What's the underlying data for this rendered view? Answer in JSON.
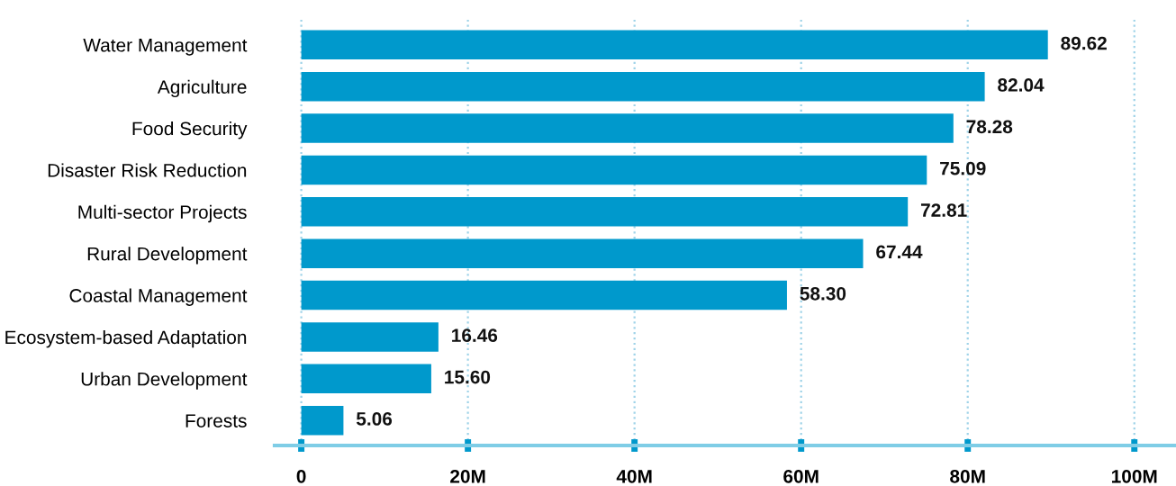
{
  "chart_data": {
    "type": "bar",
    "orientation": "horizontal",
    "categories": [
      "Water Management",
      "Agriculture",
      "Food Security",
      "Disaster Risk Reduction",
      "Multi-sector Projects",
      "Rural Development",
      "Coastal Management",
      "Ecosystem-based Adaptation",
      "Urban Development",
      "Forests"
    ],
    "values": [
      89.62,
      82.04,
      78.28,
      75.09,
      72.81,
      67.44,
      58.3,
      16.46,
      15.6,
      5.06
    ],
    "value_labels": [
      "89.62",
      "82.04",
      "78.28",
      "75.09",
      "72.81",
      "67.44",
      "58.30",
      "16.46",
      "15.60",
      "5.06"
    ],
    "color": "#0099cc",
    "xlim": [
      -3.2,
      105
    ],
    "xticks": [
      0,
      {
        "value": 20,
        "label": "20M"
      },
      {
        "value": 40,
        "label": "40M"
      },
      {
        "value": 60,
        "label": "60M"
      },
      {
        "value": 80,
        "label": "80M"
      },
      {
        "value": 100,
        "label": "100M"
      }
    ],
    "grid": "x"
  }
}
